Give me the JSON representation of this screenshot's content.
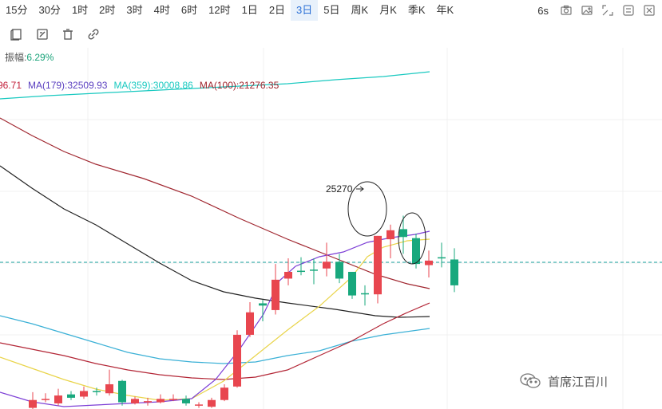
{
  "toolbar": {
    "timeframes": [
      "15分",
      "30分",
      "1时",
      "2时",
      "3时",
      "4时",
      "6时",
      "12时",
      "1日",
      "2日",
      "3日",
      "5日",
      "周K",
      "月K",
      "季K",
      "年K"
    ],
    "active_timeframe": "3日",
    "interval": "6s",
    "icons": [
      "camera-icon",
      "image-icon",
      "fullscreen-icon",
      "settings-icon",
      "close-icon"
    ]
  },
  "drawing_tools": [
    "copy-icon",
    "edit-icon",
    "trash-icon",
    "link-icon"
  ],
  "amplitude": {
    "label": "振幅:",
    "value": "6.29%"
  },
  "ma_legend": [
    {
      "text": "96.71",
      "color": "#c21f3a"
    },
    {
      "text": "MA(179):32509.93",
      "color": "#5a3fc0"
    },
    {
      "text": "MA(359):30008.86",
      "color": "#19c9c0"
    },
    {
      "text": "MA(100):21276.35",
      "color": "#a0262f"
    }
  ],
  "annotation": {
    "label": "25270"
  },
  "watermark": {
    "text": "首席江百川"
  },
  "colors": {
    "up": "#e8464f",
    "down": "#18a87d",
    "accent": "#2a6fd6"
  },
  "chart_data": {
    "type": "candlestick",
    "candles": [
      {
        "o": 0.1,
        "c": 0.8,
        "h": 1.5,
        "l": 0.0
      },
      {
        "o": 0.9,
        "c": 0.9,
        "h": 1.4,
        "l": 0.6
      },
      {
        "o": 0.5,
        "c": 1.2,
        "h": 1.8,
        "l": 0.3
      },
      {
        "o": 1.3,
        "c": 1.0,
        "h": 1.6,
        "l": 0.8
      },
      {
        "o": 1.1,
        "c": 1.6,
        "h": 2.0,
        "l": 0.9
      },
      {
        "o": 1.6,
        "c": 1.5,
        "h": 1.9,
        "l": 1.2
      },
      {
        "o": 1.4,
        "c": 2.2,
        "h": 3.5,
        "l": 1.2
      },
      {
        "o": 2.5,
        "c": 0.6,
        "h": 2.6,
        "l": 0.3
      },
      {
        "o": 0.5,
        "c": 0.9,
        "h": 1.1,
        "l": 0.4
      },
      {
        "o": 0.7,
        "c": 0.7,
        "h": 1.0,
        "l": 0.3
      },
      {
        "o": 0.6,
        "c": 0.9,
        "h": 1.3,
        "l": 0.5
      },
      {
        "o": 0.8,
        "c": 0.9,
        "h": 1.3,
        "l": 0.7
      },
      {
        "o": 0.9,
        "c": 0.5,
        "h": 1.2,
        "l": 0.3
      },
      {
        "o": 0.4,
        "c": 0.4,
        "h": 0.6,
        "l": 0.1
      },
      {
        "o": 0.2,
        "c": 0.8,
        "h": 1.0,
        "l": 0.1
      },
      {
        "o": 0.8,
        "c": 1.9,
        "h": 2.2,
        "l": 0.7
      },
      {
        "o": 2.0,
        "c": 6.6,
        "h": 7.0,
        "l": 1.9
      },
      {
        "o": 6.6,
        "c": 8.6,
        "h": 9.5,
        "l": 6.4
      },
      {
        "o": 9.4,
        "c": 9.2,
        "h": 9.7,
        "l": 7.8
      },
      {
        "o": 8.8,
        "c": 11.5,
        "h": 12.9,
        "l": 8.4
      },
      {
        "o": 11.6,
        "c": 12.2,
        "h": 13.4,
        "l": 11.0
      },
      {
        "o": 12.3,
        "c": 12.2,
        "h": 13.5,
        "l": 11.9
      },
      {
        "o": 12.4,
        "c": 12.3,
        "h": 13.4,
        "l": 11.1
      },
      {
        "o": 12.5,
        "c": 13.1,
        "h": 14.8,
        "l": 11.8
      },
      {
        "o": 13.1,
        "c": 11.6,
        "h": 13.8,
        "l": 11.2
      },
      {
        "o": 12.2,
        "c": 10.1,
        "h": 12.2,
        "l": 9.8
      },
      {
        "o": 10.3,
        "c": 10.2,
        "h": 11.0,
        "l": 9.2
      },
      {
        "o": 10.2,
        "c": 15.4,
        "h": 15.4,
        "l": 9.4
      },
      {
        "o": 15.1,
        "c": 15.9,
        "h": 16.4,
        "l": 13.4
      },
      {
        "o": 16.0,
        "c": 15.3,
        "h": 17.2,
        "l": 13.8
      },
      {
        "o": 15.2,
        "c": 12.9,
        "h": 15.6,
        "l": 12.5
      },
      {
        "o": 12.8,
        "c": 13.2,
        "h": 14.1,
        "l": 11.7
      },
      {
        "o": 13.5,
        "c": 13.4,
        "h": 14.8,
        "l": 12.6
      },
      {
        "o": 13.3,
        "c": 11.0,
        "h": 14.3,
        "l": 10.4
      }
    ],
    "ylim": [
      0,
      30
    ],
    "current_price_level": 11.5
  }
}
